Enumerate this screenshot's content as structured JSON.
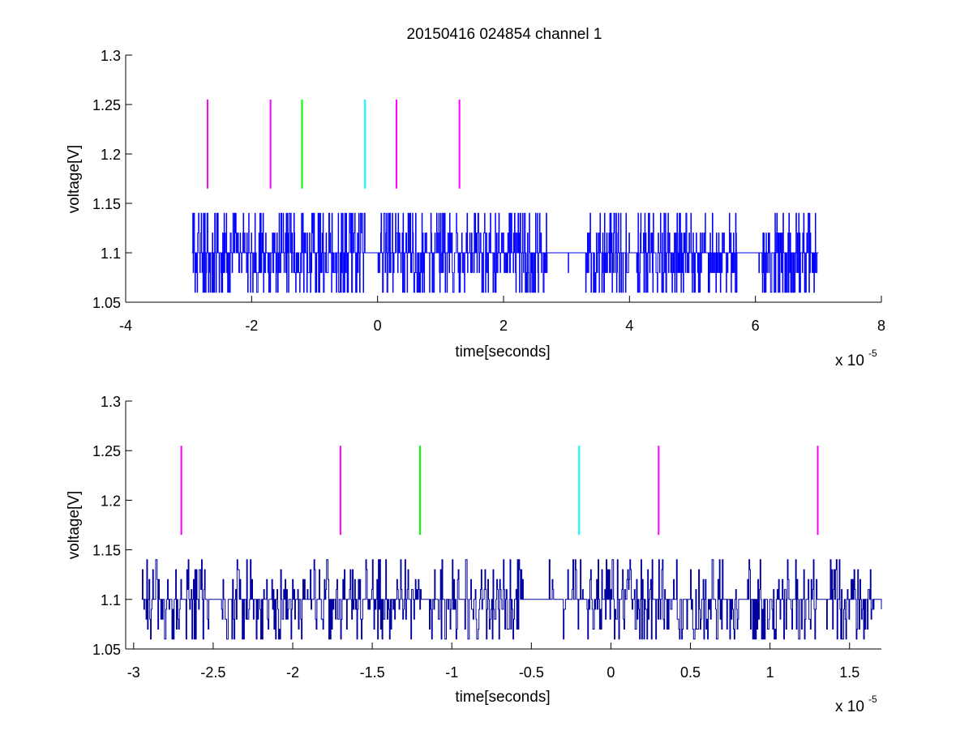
{
  "figure": {
    "title": "20150416 024854 channel 1"
  },
  "chart_data": [
    {
      "type": "line",
      "title": "20150416 024854 channel 1",
      "xlabel": "time[seconds]",
      "ylabel": "voltage[V]",
      "x_scale_label": "x 10",
      "x_scale_exponent": "-5",
      "x_multiplier": 1e-05,
      "xlim": [
        -4,
        8
      ],
      "ylim": [
        1.05,
        1.3
      ],
      "xticks": [
        "-4",
        "-2",
        "0",
        "2",
        "4",
        "6",
        "8"
      ],
      "xtick_values": [
        -4,
        -2,
        0,
        2,
        4,
        6,
        8
      ],
      "yticks": [
        "1.05",
        "1.1",
        "1.15",
        "1.2",
        "1.25",
        "1.3"
      ],
      "ytick_values": [
        1.05,
        1.1,
        1.15,
        1.2,
        1.25,
        1.3
      ],
      "grid": false,
      "box": false,
      "signal": {
        "color": "#0000ff",
        "x_start": -2.95,
        "x_end": 7.0,
        "levels": [
          1.06,
          1.08,
          1.1,
          1.12,
          1.14
        ],
        "baseline": 1.1,
        "bursts": [
          [
            -2.95,
            -0.2
          ],
          [
            0.0,
            2.7
          ],
          [
            3.3,
            4.0
          ],
          [
            4.1,
            5.7
          ],
          [
            6.1,
            7.0
          ]
        ]
      },
      "markers": [
        {
          "x": -2.7,
          "y_range": [
            1.165,
            1.255
          ],
          "color": "#ff00ff"
        },
        {
          "x": -1.7,
          "y_range": [
            1.165,
            1.255
          ],
          "color": "#ff00ff"
        },
        {
          "x": -1.2,
          "y_range": [
            1.165,
            1.255
          ],
          "color": "#00ff00"
        },
        {
          "x": -0.2,
          "y_range": [
            1.165,
            1.255
          ],
          "color": "#00ffff"
        },
        {
          "x": 0.3,
          "y_range": [
            1.165,
            1.255
          ],
          "color": "#ff00ff"
        },
        {
          "x": 1.3,
          "y_range": [
            1.165,
            1.255
          ],
          "color": "#ff00ff"
        }
      ]
    },
    {
      "type": "line",
      "title": "",
      "xlabel": "time[seconds]",
      "ylabel": "voltage[V]",
      "x_scale_label": "x 10",
      "x_scale_exponent": "-5",
      "x_multiplier": 1e-05,
      "xlim": [
        -3.05,
        1.7
      ],
      "ylim": [
        1.05,
        1.3
      ],
      "xticks": [
        "-3",
        "-2.5",
        "-2",
        "-1.5",
        "-1",
        "-0.5",
        "0",
        "0.5",
        "1",
        "1.5"
      ],
      "xtick_values": [
        -3,
        -2.5,
        -2,
        -1.5,
        -1,
        -0.5,
        0,
        0.5,
        1,
        1.5
      ],
      "yticks": [
        "1.05",
        "1.1",
        "1.15",
        "1.2",
        "1.25",
        "1.3"
      ],
      "ytick_values": [
        1.05,
        1.1,
        1.15,
        1.2,
        1.25,
        1.3
      ],
      "grid": false,
      "box": false,
      "signal": {
        "color": "#0000a0",
        "x_start": -2.95,
        "x_end": 1.7,
        "levels": [
          1.06,
          1.07,
          1.08,
          1.09,
          1.1,
          1.11,
          1.12,
          1.13,
          1.14
        ],
        "baseline": 1.1,
        "bursts": [
          [
            -2.95,
            -2.55
          ],
          [
            -2.45,
            -1.2
          ],
          [
            -1.15,
            -0.55
          ],
          [
            -0.3,
            0.45
          ],
          [
            0.5,
            0.8
          ],
          [
            0.85,
            1.3
          ],
          [
            1.35,
            1.65
          ]
        ]
      },
      "markers": [
        {
          "x": -2.7,
          "y_range": [
            1.165,
            1.255
          ],
          "color": "#ff00ff"
        },
        {
          "x": -1.7,
          "y_range": [
            1.165,
            1.255
          ],
          "color": "#ff00ff"
        },
        {
          "x": -1.2,
          "y_range": [
            1.165,
            1.255
          ],
          "color": "#00ff00"
        },
        {
          "x": -0.2,
          "y_range": [
            1.165,
            1.255
          ],
          "color": "#00ffff"
        },
        {
          "x": 0.3,
          "y_range": [
            1.165,
            1.255
          ],
          "color": "#ff00ff"
        },
        {
          "x": 1.3,
          "y_range": [
            1.165,
            1.255
          ],
          "color": "#ff00ff"
        }
      ]
    }
  ]
}
